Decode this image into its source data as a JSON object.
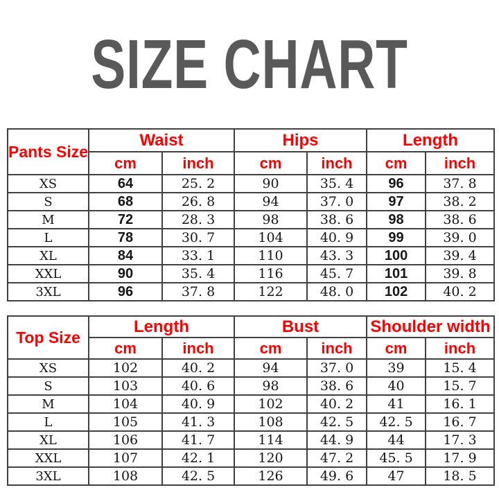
{
  "title": "SIZE CHART",
  "colors": {
    "title_gray": "#595959",
    "header_red": "#fe0000",
    "data_black": "#161616",
    "border_gray": "#404040",
    "background": "#ffffff"
  },
  "tables": [
    {
      "name": "pants-size-table",
      "corner_label": "Pants Size",
      "measure_groups": [
        "Waist",
        "Hips",
        "Length"
      ],
      "unit_headers": [
        "cm",
        "inch"
      ],
      "rows": [
        {
          "size": "XS",
          "values": [
            "64",
            "25.2",
            "90",
            "35.4",
            "96",
            "37.8"
          ]
        },
        {
          "size": "S",
          "values": [
            "68",
            "26.8",
            "94",
            "37.0",
            "97",
            "38.2"
          ]
        },
        {
          "size": "M",
          "values": [
            "72",
            "28.3",
            "98",
            "38.6",
            "98",
            "38.6"
          ]
        },
        {
          "size": "L",
          "values": [
            "78",
            "30.7",
            "104",
            "40.9",
            "99",
            "39.0"
          ]
        },
        {
          "size": "XL",
          "values": [
            "84",
            "33.1",
            "110",
            "43.3",
            "100",
            "39.4"
          ]
        },
        {
          "size": "XXL",
          "values": [
            "90",
            "35.4",
            "116",
            "45.7",
            "101",
            "39.8"
          ]
        },
        {
          "size": "3XL",
          "values": [
            "96",
            "37.8",
            "122",
            "48.0",
            "102",
            "40.2"
          ]
        }
      ]
    },
    {
      "name": "top-size-table",
      "corner_label": "Top Size",
      "measure_groups": [
        "Length",
        "Bust",
        "Shoulder width"
      ],
      "unit_headers": [
        "cm",
        "inch"
      ],
      "rows": [
        {
          "size": "XS",
          "values": [
            "102",
            "40.2",
            "94",
            "37.0",
            "39",
            "15.4"
          ]
        },
        {
          "size": "S",
          "values": [
            "103",
            "40.6",
            "98",
            "38.6",
            "40",
            "15.7"
          ]
        },
        {
          "size": "M",
          "values": [
            "104",
            "40.9",
            "102",
            "40.2",
            "41",
            "16.1"
          ]
        },
        {
          "size": "L",
          "values": [
            "105",
            "41.3",
            "108",
            "42.5",
            "42.5",
            "16.7"
          ]
        },
        {
          "size": "XL",
          "values": [
            "106",
            "41.7",
            "114",
            "44.9",
            "44",
            "17.3"
          ]
        },
        {
          "size": "XXL",
          "values": [
            "107",
            "42.1",
            "120",
            "47.2",
            "45.5",
            "17.9"
          ]
        },
        {
          "size": "3XL",
          "values": [
            "108",
            "42.5",
            "126",
            "49.6",
            "47",
            "18.5"
          ]
        }
      ]
    }
  ]
}
